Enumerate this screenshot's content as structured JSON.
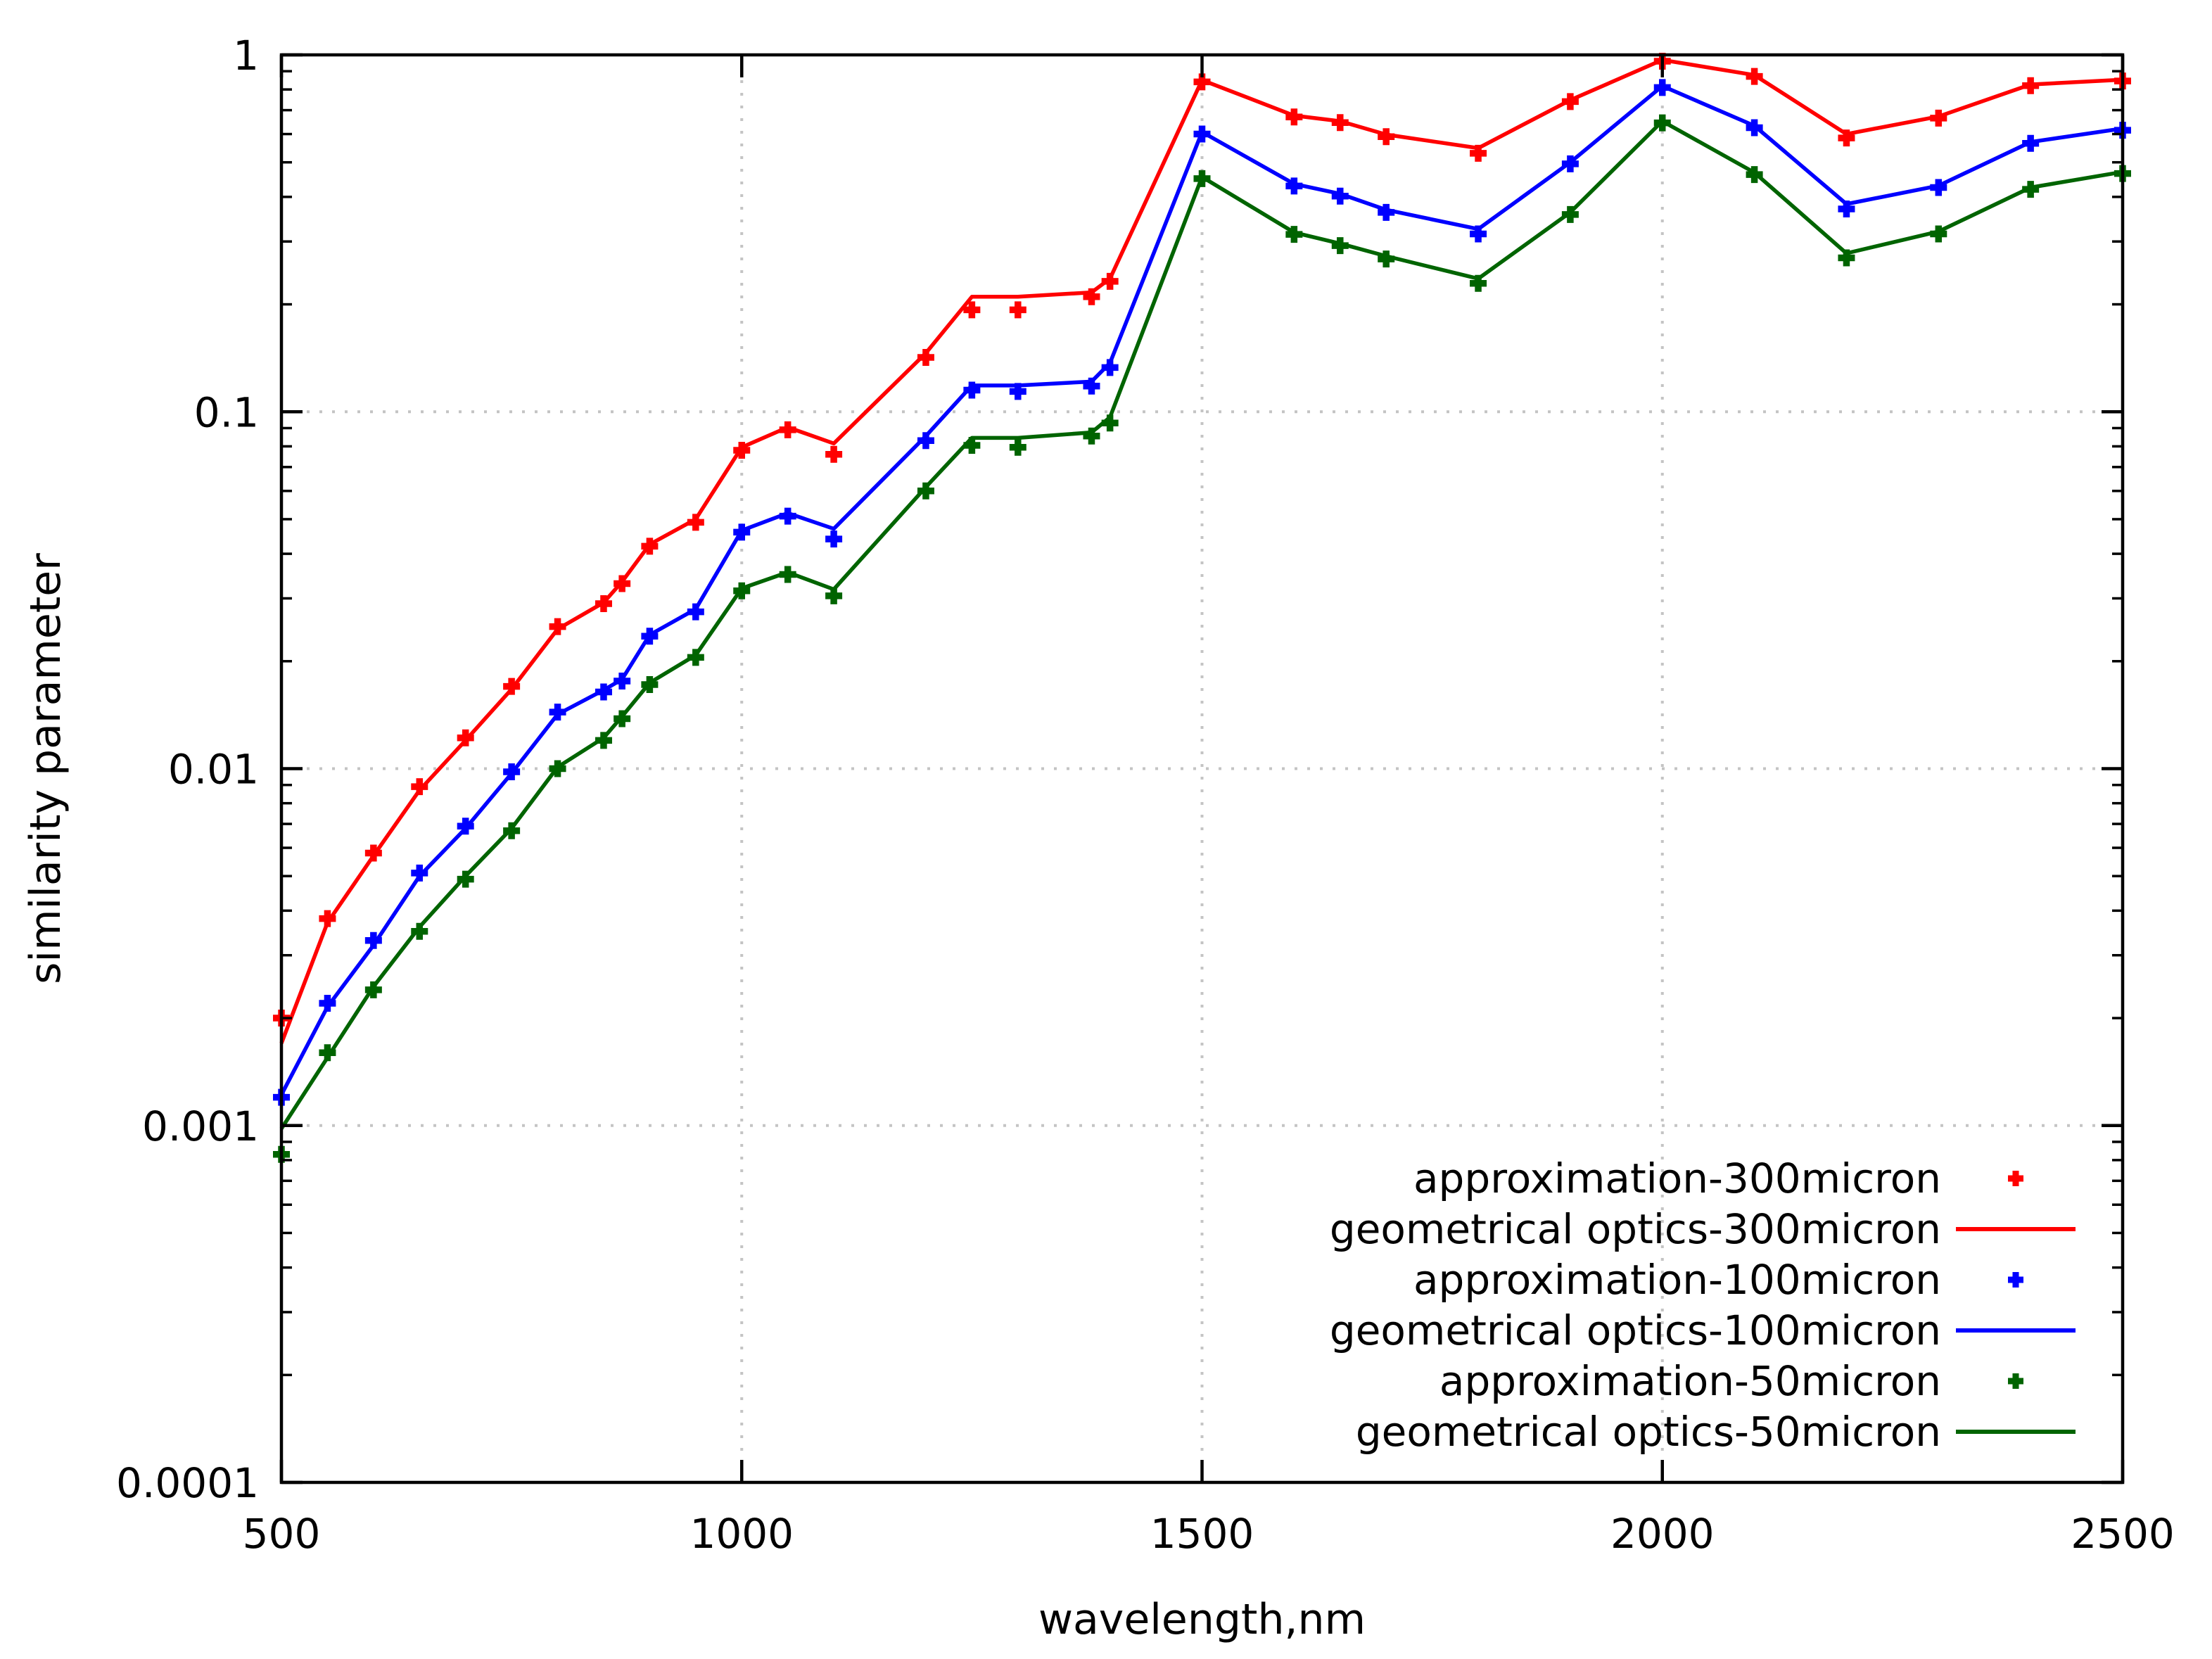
{
  "chart_data": {
    "type": "line",
    "title": "",
    "xlabel": "wavelength,nm",
    "ylabel": "similarity parameter",
    "x_scale": "linear",
    "y_scale": "log",
    "x_range": [
      500,
      2500
    ],
    "y_range": [
      0.0001,
      1
    ],
    "x_ticks": [
      500,
      1000,
      1500,
      2000,
      2500
    ],
    "y_ticks": [
      {
        "label": "1",
        "value": 1
      },
      {
        "label": "0.1",
        "value": 0.1
      },
      {
        "label": "0.01",
        "value": 0.01
      },
      {
        "label": "0.001",
        "value": 0.001
      },
      {
        "label": "0.0001",
        "value": 0.0001
      }
    ],
    "x_gridlines": [
      1000,
      1500,
      2000
    ],
    "y_gridlines": [
      0.1,
      0.01,
      0.001
    ],
    "grid": true,
    "legend_position": "bottom-right-inside",
    "x": [
      500,
      550,
      600,
      650,
      700,
      750,
      800,
      850,
      870,
      900,
      950,
      1000,
      1050,
      1100,
      1200,
      1250,
      1300,
      1380,
      1400,
      1500,
      1600,
      1650,
      1700,
      1800,
      1900,
      2000,
      2100,
      2200,
      2300,
      2400,
      2500
    ],
    "series": [
      {
        "name": "approximation-300micron",
        "style": "points",
        "color": "#ff0000",
        "values": [
          0.002,
          0.0038,
          0.0058,
          0.0089,
          0.0122,
          0.017,
          0.025,
          0.029,
          0.033,
          0.042,
          0.049,
          0.078,
          0.089,
          0.076,
          0.142,
          0.193,
          0.193,
          0.21,
          0.232,
          0.84,
          0.67,
          0.646,
          0.59,
          0.53,
          0.74,
          0.96,
          0.87,
          0.585,
          0.665,
          0.82,
          0.845
        ]
      },
      {
        "name": "geometrical optics-300micron",
        "style": "line",
        "color": "#ff0000",
        "values": [
          0.0017,
          0.0037,
          0.0057,
          0.0087,
          0.012,
          0.0167,
          0.0246,
          0.0292,
          0.0334,
          0.0425,
          0.05,
          0.0795,
          0.0905,
          0.0815,
          0.146,
          0.21,
          0.21,
          0.216,
          0.236,
          0.85,
          0.676,
          0.652,
          0.598,
          0.548,
          0.747,
          0.968,
          0.878,
          0.6,
          0.672,
          0.826,
          0.852
        ]
      },
      {
        "name": "approximation-100micron",
        "style": "points",
        "color": "#0000ff",
        "values": [
          0.0012,
          0.0022,
          0.0033,
          0.0051,
          0.0069,
          0.0098,
          0.0144,
          0.0164,
          0.0176,
          0.0235,
          0.0275,
          0.046,
          0.051,
          0.044,
          0.083,
          0.115,
          0.114,
          0.118,
          0.133,
          0.6,
          0.429,
          0.402,
          0.362,
          0.315,
          0.495,
          0.81,
          0.625,
          0.37,
          0.425,
          0.565,
          0.615
        ]
      },
      {
        "name": "geometrical optics-100micron",
        "style": "line",
        "color": "#0000ff",
        "values": [
          0.00122,
          0.00215,
          0.0032,
          0.005,
          0.0068,
          0.0097,
          0.0142,
          0.0166,
          0.0178,
          0.0237,
          0.028,
          0.0465,
          0.052,
          0.047,
          0.0855,
          0.1185,
          0.1185,
          0.1215,
          0.137,
          0.608,
          0.435,
          0.408,
          0.368,
          0.325,
          0.5,
          0.818,
          0.633,
          0.382,
          0.43,
          0.57,
          0.622
        ]
      },
      {
        "name": "approximation-50micron",
        "style": "points",
        "color": "#006400",
        "values": [
          0.00083,
          0.0016,
          0.0024,
          0.0035,
          0.0049,
          0.0067,
          0.01,
          0.012,
          0.0138,
          0.0172,
          0.0205,
          0.0315,
          0.035,
          0.0305,
          0.06,
          0.0805,
          0.0795,
          0.0855,
          0.093,
          0.45,
          0.314,
          0.292,
          0.268,
          0.229,
          0.357,
          0.645,
          0.462,
          0.27,
          0.315,
          0.42,
          0.465
        ]
      },
      {
        "name": "geometrical optics-50micron",
        "style": "line",
        "color": "#006400",
        "values": [
          0.00098,
          0.00155,
          0.00245,
          0.0036,
          0.005,
          0.0068,
          0.0101,
          0.0122,
          0.014,
          0.0174,
          0.0208,
          0.032,
          0.0355,
          0.0318,
          0.0615,
          0.0845,
          0.0845,
          0.0875,
          0.0965,
          0.455,
          0.318,
          0.296,
          0.273,
          0.236,
          0.362,
          0.652,
          0.468,
          0.278,
          0.32,
          0.425,
          0.47
        ]
      }
    ]
  },
  "colors": {
    "red": "#ff0000",
    "blue": "#0000ff",
    "green": "#006400",
    "grid": "#c4c4c4",
    "axis": "#000000",
    "background": "#ffffff"
  }
}
